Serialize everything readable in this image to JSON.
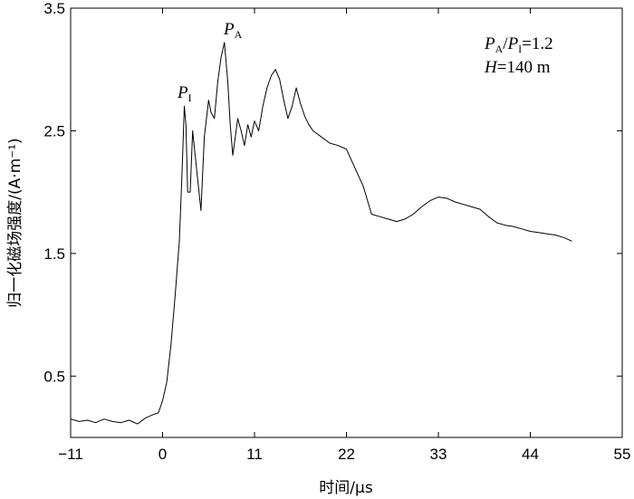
{
  "chart_data": {
    "type": "line",
    "xlabel": "时间/μs",
    "ylabel": "归一化磁场强度/(A·m⁻¹)",
    "xlim": [
      -11,
      55
    ],
    "ylim": [
      0,
      3.5
    ],
    "x_ticks": [
      -11,
      0,
      11,
      22,
      33,
      44,
      55
    ],
    "x_tick_labels": [
      "−11",
      "0",
      "11",
      "22",
      "33",
      "44",
      "55"
    ],
    "y_ticks": [
      0.5,
      1.5,
      2.5,
      3.5
    ],
    "y_tick_labels": [
      "0.5",
      "1.5",
      "2.5",
      "3.5"
    ],
    "grid": false,
    "annotations": {
      "ratio": {
        "l1": "P",
        "s1": "A",
        "mid": "/",
        "l2": "P",
        "s2": "I",
        "val": "=1.2"
      },
      "height": {
        "l": "H",
        "val": "=140 m"
      },
      "peak_i": {
        "l": "P",
        "s": "I"
      },
      "peak_a": {
        "l": "P",
        "s": "A"
      }
    },
    "series": [
      {
        "x": [
          -11,
          -10,
          -9,
          -8,
          -7,
          -6,
          -5,
          -4,
          -3,
          -2,
          -1,
          -0.5,
          0,
          0.5,
          1,
          1.5,
          2,
          2.3,
          2.6,
          2.8,
          3,
          3.3,
          3.6,
          3.9,
          4.2,
          4.6,
          5,
          5.5,
          5.8,
          6.2,
          6.6,
          7,
          7.4,
          7.8,
          8.1,
          8.4,
          8.7,
          9,
          9.4,
          9.8,
          10.2,
          10.6,
          11,
          11.5,
          12,
          12.5,
          13,
          13.5,
          14,
          14.5,
          15,
          15.5,
          16,
          16.5,
          17,
          17.5,
          18,
          19,
          20,
          21,
          22,
          23,
          24,
          25,
          26,
          27,
          28,
          29,
          30,
          31,
          32,
          33,
          34,
          35,
          36,
          37,
          38,
          39,
          40,
          41,
          42,
          43,
          44,
          45,
          46,
          47,
          48,
          49
        ],
        "y": [
          0.15,
          0.13,
          0.14,
          0.12,
          0.15,
          0.13,
          0.12,
          0.14,
          0.11,
          0.16,
          0.19,
          0.2,
          0.3,
          0.45,
          0.75,
          1.15,
          1.6,
          2.1,
          2.7,
          2.55,
          2.0,
          2.0,
          2.5,
          2.3,
          2.1,
          1.85,
          2.45,
          2.75,
          2.65,
          2.6,
          2.9,
          3.1,
          3.22,
          2.9,
          2.55,
          2.3,
          2.45,
          2.6,
          2.5,
          2.38,
          2.55,
          2.45,
          2.58,
          2.5,
          2.7,
          2.85,
          2.95,
          3.0,
          2.92,
          2.75,
          2.6,
          2.7,
          2.85,
          2.72,
          2.62,
          2.55,
          2.5,
          2.45,
          2.4,
          2.38,
          2.35,
          2.2,
          2.05,
          1.82,
          1.8,
          1.78,
          1.76,
          1.78,
          1.82,
          1.88,
          1.93,
          1.96,
          1.95,
          1.92,
          1.9,
          1.88,
          1.86,
          1.8,
          1.75,
          1.73,
          1.72,
          1.7,
          1.68,
          1.67,
          1.66,
          1.65,
          1.63,
          1.6
        ]
      }
    ]
  }
}
